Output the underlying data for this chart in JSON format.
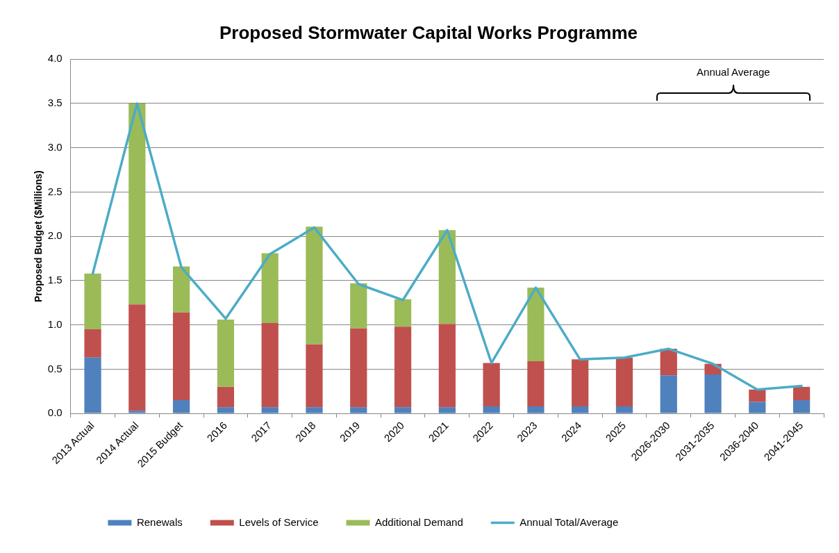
{
  "chart_data": {
    "type": "bar",
    "title": "Proposed Stormwater Capital Works Programme",
    "ylabel": "Proposed Budget ($Millions)",
    "categories": [
      "2013 Actual",
      "2014 Actual",
      "2015 Budget",
      "2016",
      "2017",
      "2018",
      "2019",
      "2020",
      "2021",
      "2022",
      "2023",
      "2024",
      "2025",
      "2026-2030",
      "2031-2035",
      "2036-2040",
      "2041-2045"
    ],
    "stacked": true,
    "series": [
      {
        "name": "Renewals",
        "color": "#4f81bd",
        "values": [
          0.63,
          0.03,
          0.15,
          0.07,
          0.07,
          0.07,
          0.07,
          0.07,
          0.07,
          0.08,
          0.08,
          0.08,
          0.08,
          0.43,
          0.44,
          0.13,
          0.15
        ]
      },
      {
        "name": "Levels of Service",
        "color": "#c0504d",
        "values": [
          0.32,
          1.2,
          0.99,
          0.23,
          0.95,
          0.71,
          0.89,
          0.91,
          0.94,
          0.49,
          0.51,
          0.53,
          0.55,
          0.3,
          0.12,
          0.14,
          0.15
        ]
      },
      {
        "name": "Additional Demand",
        "color": "#9bbb59",
        "values": [
          0.63,
          2.27,
          0.52,
          0.76,
          0.79,
          1.33,
          0.51,
          0.31,
          1.06,
          null,
          0.83,
          null,
          null,
          null,
          null,
          null,
          null
        ]
      },
      {
        "name": "Annual Total/Average",
        "type": "line",
        "color": "#4bacc6",
        "values": [
          1.58,
          3.5,
          1.65,
          1.07,
          1.8,
          2.1,
          1.46,
          1.28,
          2.07,
          0.57,
          1.42,
          0.61,
          0.63,
          0.73,
          0.56,
          0.27,
          0.31
        ]
      }
    ],
    "ylim": [
      0,
      4
    ],
    "yticks": [
      {
        "value": 0,
        "label": "0.0"
      },
      {
        "value": 0.5,
        "label": "0.5"
      },
      {
        "value": 1,
        "label": "1.0"
      },
      {
        "value": 1.5,
        "label": "1.5"
      },
      {
        "value": 2,
        "label": "2.0"
      },
      {
        "value": 2.5,
        "label": "2.5"
      },
      {
        "value": 3,
        "label": "3.0"
      },
      {
        "value": 3.5,
        "label": "3.5"
      },
      {
        "value": 4,
        "label": "4.0"
      }
    ],
    "grid": "y",
    "legend": "bottom",
    "marker": "none",
    "line_style": "solid",
    "annotations": [
      "Annual Average"
    ]
  }
}
